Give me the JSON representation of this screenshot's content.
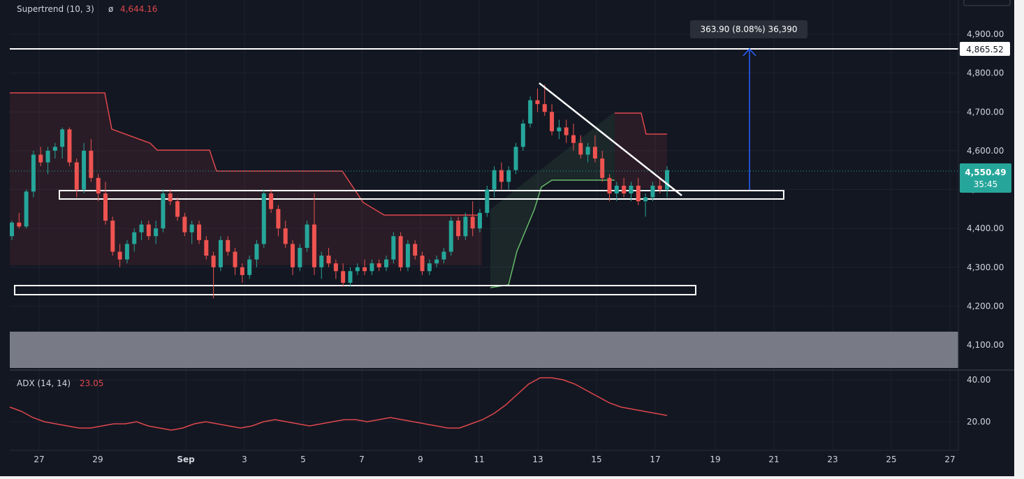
{
  "colors": {
    "background": "#131722",
    "grid": "#1e2230",
    "up": "#26a69a",
    "down": "#ef5350",
    "supertrend_down": "#e0474c",
    "supertrend_up": "#66bb6a",
    "adx": "#e0474c",
    "level_line": "#ffffff",
    "measure": "#2962ff",
    "zone": "#787b86",
    "price_badge": "#26a69a"
  },
  "supertrend_legend": {
    "name": "Supertrend (10, 3)",
    "symbol": "ø",
    "value": "4,644.16"
  },
  "adx_legend": {
    "name": "ADX (14, 14)",
    "value": "23.05"
  },
  "measure_label": "363.90 (8.08%) 36,390",
  "price_badge": {
    "price": "4,550.49",
    "countdown": "35:45"
  },
  "level_badge": "4,865.52",
  "y_ticks": [
    "4,900.00",
    "4,800.00",
    "4,700.00",
    "4,600.00",
    "4,500.00",
    "4,400.00",
    "4,300.00",
    "4,200.00",
    "4,100.00"
  ],
  "adx_ticks": [
    "40.00",
    "20.00"
  ],
  "x_ticks": [
    "27",
    "29",
    "Sep",
    "3",
    "5",
    "7",
    "9",
    "11",
    "13",
    "15",
    "17",
    "19",
    "21",
    "23",
    "25",
    "27"
  ],
  "chart_data": {
    "type": "candlestick",
    "title": "",
    "price_axis": {
      "ylim": [
        4040,
        4950
      ],
      "ticks": [
        4900,
        4800,
        4700,
        4600,
        4500,
        4400,
        4300,
        4200,
        4100
      ]
    },
    "x_axis": {
      "labels": [
        "27",
        "29",
        "Sep",
        "3",
        "5",
        "7",
        "9",
        "11",
        "13",
        "15",
        "17",
        "19",
        "21",
        "23",
        "25",
        "27"
      ]
    },
    "resistance_level": 4865.52,
    "last_price": 4550.49,
    "candles": [
      [
        4380,
        4420,
        4370,
        4415
      ],
      [
        4415,
        4440,
        4400,
        4405
      ],
      [
        4405,
        4500,
        4400,
        4495
      ],
      [
        4495,
        4600,
        4480,
        4590
      ],
      [
        4590,
        4610,
        4560,
        4570
      ],
      [
        4570,
        4610,
        4540,
        4600
      ],
      [
        4600,
        4620,
        4580,
        4610
      ],
      [
        4610,
        4660,
        4580,
        4655
      ],
      [
        4655,
        4660,
        4560,
        4570
      ],
      [
        4570,
        4580,
        4480,
        4500
      ],
      [
        4500,
        4620,
        4490,
        4600
      ],
      [
        4600,
        4630,
        4520,
        4530
      ],
      [
        4530,
        4540,
        4470,
        4490
      ],
      [
        4490,
        4520,
        4410,
        4420
      ],
      [
        4420,
        4430,
        4330,
        4340
      ],
      [
        4340,
        4360,
        4300,
        4320
      ],
      [
        4320,
        4370,
        4310,
        4360
      ],
      [
        4360,
        4400,
        4340,
        4390
      ],
      [
        4390,
        4420,
        4370,
        4410
      ],
      [
        4410,
        4420,
        4370,
        4380
      ],
      [
        4380,
        4420,
        4360,
        4400
      ],
      [
        4400,
        4500,
        4390,
        4490
      ],
      [
        4490,
        4500,
        4460,
        4470
      ],
      [
        4470,
        4480,
        4420,
        4430
      ],
      [
        4430,
        4440,
        4380,
        4390
      ],
      [
        4390,
        4420,
        4360,
        4410
      ],
      [
        4410,
        4420,
        4360,
        4370
      ],
      [
        4370,
        4380,
        4320,
        4330
      ],
      [
        4330,
        4340,
        4220,
        4300
      ],
      [
        4300,
        4380,
        4290,
        4370
      ],
      [
        4370,
        4380,
        4330,
        4340
      ],
      [
        4340,
        4350,
        4280,
        4300
      ],
      [
        4300,
        4310,
        4260,
        4280
      ],
      [
        4280,
        4330,
        4270,
        4320
      ],
      [
        4320,
        4370,
        4300,
        4360
      ],
      [
        4360,
        4500,
        4350,
        4490
      ],
      [
        4490,
        4500,
        4440,
        4450
      ],
      [
        4450,
        4460,
        4380,
        4400
      ],
      [
        4400,
        4420,
        4350,
        4360
      ],
      [
        4360,
        4370,
        4280,
        4300
      ],
      [
        4300,
        4360,
        4290,
        4350
      ],
      [
        4350,
        4420,
        4340,
        4410
      ],
      [
        4410,
        4490,
        4280,
        4300
      ],
      [
        4300,
        4340,
        4270,
        4330
      ],
      [
        4330,
        4350,
        4300,
        4310
      ],
      [
        4310,
        4320,
        4270,
        4290
      ],
      [
        4290,
        4310,
        4250,
        4260
      ],
      [
        4260,
        4300,
        4250,
        4290
      ],
      [
        4290,
        4310,
        4280,
        4300
      ],
      [
        4300,
        4320,
        4280,
        4290
      ],
      [
        4290,
        4320,
        4280,
        4310
      ],
      [
        4310,
        4320,
        4290,
        4300
      ],
      [
        4300,
        4330,
        4290,
        4320
      ],
      [
        4320,
        4390,
        4310,
        4380
      ],
      [
        4380,
        4390,
        4290,
        4300
      ],
      [
        4300,
        4370,
        4290,
        4360
      ],
      [
        4360,
        4370,
        4320,
        4330
      ],
      [
        4330,
        4340,
        4280,
        4290
      ],
      [
        4290,
        4320,
        4280,
        4310
      ],
      [
        4310,
        4330,
        4300,
        4320
      ],
      [
        4320,
        4350,
        4310,
        4340
      ],
      [
        4340,
        4430,
        4330,
        4420
      ],
      [
        4420,
        4430,
        4370,
        4380
      ],
      [
        4380,
        4440,
        4370,
        4430
      ],
      [
        4430,
        4470,
        4380,
        4400
      ],
      [
        4400,
        4450,
        4390,
        4440
      ],
      [
        4440,
        4510,
        4430,
        4500
      ],
      [
        4500,
        4560,
        4480,
        4550
      ],
      [
        4550,
        4570,
        4500,
        4520
      ],
      [
        4520,
        4560,
        4500,
        4550
      ],
      [
        4550,
        4620,
        4540,
        4610
      ],
      [
        4610,
        4680,
        4600,
        4670
      ],
      [
        4670,
        4740,
        4660,
        4730
      ],
      [
        4730,
        4760,
        4700,
        4720
      ],
      [
        4720,
        4770,
        4690,
        4700
      ],
      [
        4700,
        4720,
        4640,
        4650
      ],
      [
        4650,
        4680,
        4630,
        4660
      ],
      [
        4660,
        4680,
        4620,
        4640
      ],
      [
        4640,
        4670,
        4600,
        4620
      ],
      [
        4620,
        4640,
        4580,
        4590
      ],
      [
        4590,
        4620,
        4570,
        4610
      ],
      [
        4610,
        4640,
        4570,
        4580
      ],
      [
        4580,
        4600,
        4520,
        4530
      ],
      [
        4530,
        4540,
        4470,
        4490
      ],
      [
        4490,
        4520,
        4470,
        4510
      ],
      [
        4510,
        4530,
        4480,
        4490
      ],
      [
        4490,
        4520,
        4470,
        4510
      ],
      [
        4510,
        4530,
        4460,
        4470
      ],
      [
        4470,
        4490,
        4430,
        4480
      ],
      [
        4480,
        4520,
        4470,
        4510
      ],
      [
        4510,
        4530,
        4490,
        4500
      ],
      [
        4500,
        4560,
        4480,
        4550
      ]
    ],
    "supertrend_down_segments": [
      {
        "from": 0,
        "to": 19,
        "levels": [
          4750,
          4750,
          4750,
          4750,
          4750,
          4750,
          4750,
          4750,
          4750,
          4750,
          4750,
          4700,
          4680,
          4680,
          4660,
          4640,
          4630,
          4630,
          4630,
          4630
        ]
      },
      {
        "from": 20,
        "to": 68,
        "level_note": "stepped descent to 4,500"
      }
    ],
    "adx": [
      27,
      25,
      22,
      20,
      19,
      18,
      17,
      17,
      18,
      19,
      19,
      20,
      18,
      17,
      16,
      17,
      19,
      20,
      19,
      18,
      17,
      18,
      20,
      21,
      20,
      19,
      18,
      19,
      20,
      21,
      21,
      20,
      21,
      22,
      21,
      20,
      19,
      18,
      17,
      17,
      19,
      21,
      24,
      28,
      33,
      38,
      41,
      41,
      40,
      38,
      35,
      32,
      29,
      27,
      26,
      25,
      24,
      23
    ]
  }
}
